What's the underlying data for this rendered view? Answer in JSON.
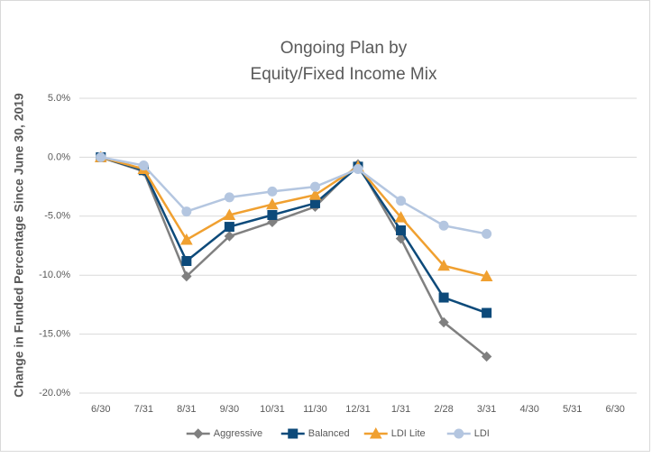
{
  "chart_data": {
    "type": "line",
    "title": [
      "Ongoing Plan by",
      "Equity/Fixed Income Mix"
    ],
    "y_label": "Change in Funded Percentage Since June 30, 2019",
    "categories": [
      "6/30",
      "7/31",
      "8/31",
      "9/30",
      "10/31",
      "11/30",
      "12/31",
      "1/31",
      "2/28",
      "3/31",
      "4/30",
      "5/31",
      "6/30"
    ],
    "series": [
      {
        "name": "Aggressive",
        "color": "#808080",
        "marker": "diamond",
        "values": [
          0,
          -1.2,
          -10.1,
          -6.7,
          -5.5,
          -4.2,
          -0.6,
          -6.9,
          -14.0,
          -16.9,
          null,
          null,
          null
        ]
      },
      {
        "name": "Balanced",
        "color": "#0d4a7a",
        "marker": "square",
        "values": [
          0,
          -1.1,
          -8.8,
          -5.9,
          -4.9,
          -3.9,
          -0.8,
          -6.2,
          -11.9,
          -13.2,
          null,
          null,
          null
        ]
      },
      {
        "name": "LDI Lite",
        "color": "#f0a030",
        "marker": "triangle",
        "values": [
          0,
          -1.0,
          -7.0,
          -4.9,
          -4.0,
          -3.2,
          -0.8,
          -5.1,
          -9.2,
          -10.1,
          null,
          null,
          null
        ]
      },
      {
        "name": "LDI",
        "color": "#b4c6e0",
        "marker": "circle",
        "values": [
          0,
          -0.7,
          -4.6,
          -3.4,
          -2.9,
          -2.5,
          -1.0,
          -3.7,
          -5.8,
          -6.5,
          null,
          null,
          null
        ]
      }
    ],
    "ylim": [
      -20,
      5
    ],
    "yticks": [
      {
        "value": 5,
        "label": "5.0%"
      },
      {
        "value": 0,
        "label": "0.0%"
      },
      {
        "value": -5,
        "label": "-5.0%"
      },
      {
        "value": -10,
        "label": "-10.0%"
      },
      {
        "value": -15,
        "label": "-15.0%"
      },
      {
        "value": -20,
        "label": "-20.0%"
      }
    ],
    "grid": true,
    "legend": "bottom"
  }
}
